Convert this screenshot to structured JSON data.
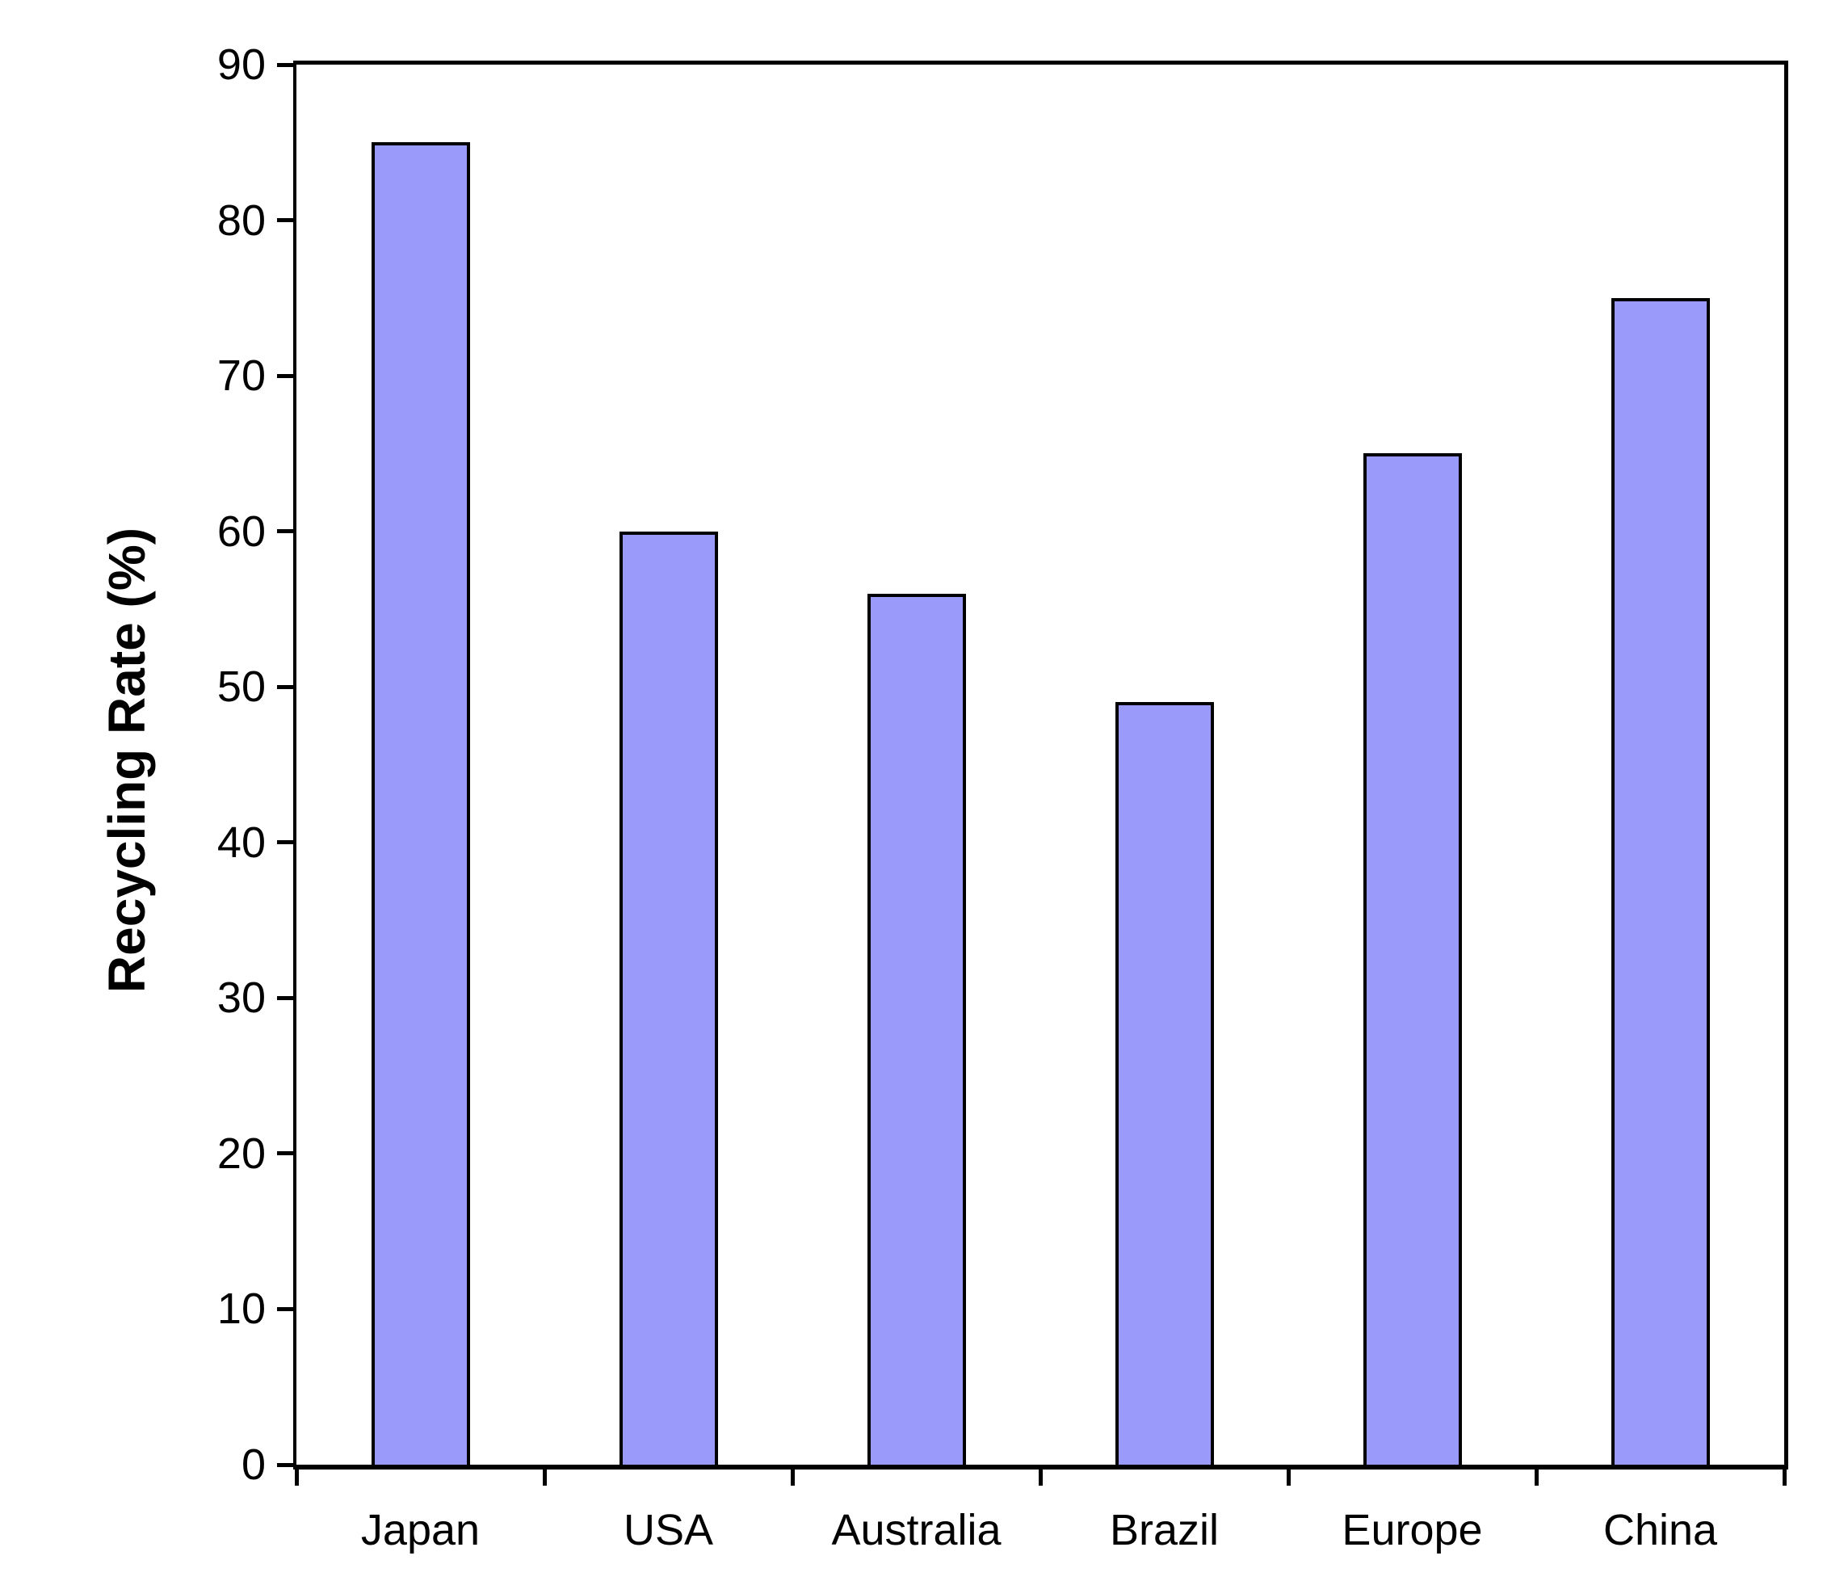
{
  "chart_data": {
    "type": "bar",
    "title": "",
    "categories": [
      "Japan",
      "USA",
      "Australia",
      "Brazil",
      "Europe",
      "China"
    ],
    "values": [
      85,
      60,
      56,
      49,
      65,
      75
    ],
    "xlabel": "",
    "ylabel": "Recycling Rate (%)",
    "ylim": [
      0,
      90
    ],
    "yticks": [
      0,
      10,
      20,
      30,
      40,
      50,
      60,
      70,
      80,
      90
    ],
    "grid": false,
    "legend": false,
    "layout": {
      "frame": "full-box",
      "y_ticks_outside_left": true,
      "x_ticks_at_category_boundaries": true
    },
    "colors": {
      "bar_fill": "#9a9afa",
      "bar_border": "#000000",
      "axis": "#000000",
      "text": "#000000",
      "background": "#ffffff"
    }
  }
}
